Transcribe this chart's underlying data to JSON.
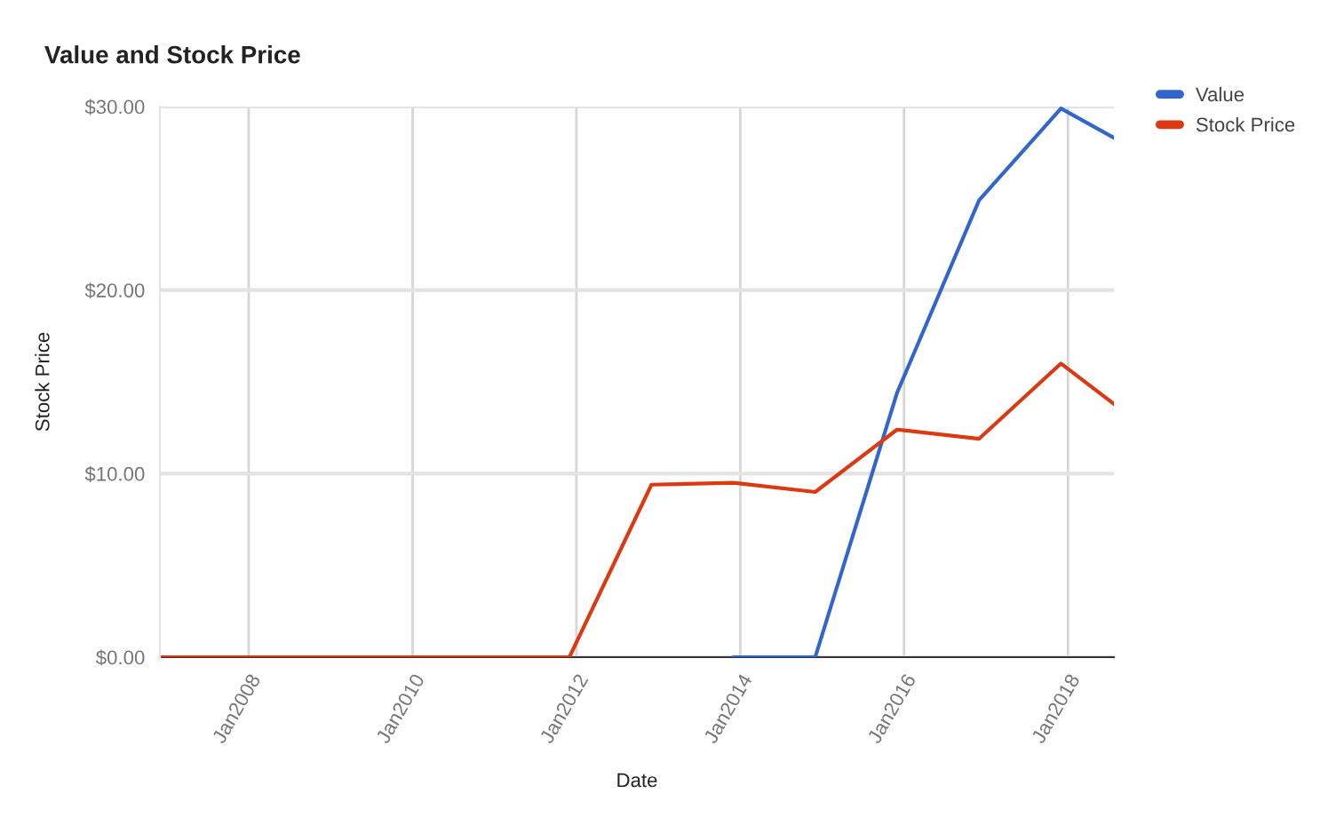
{
  "chart_data": {
    "type": "line",
    "title": "Value and Stock Price",
    "xlabel": "Date",
    "ylabel": "Stock Price",
    "x": [
      "2006-12",
      "2007-12",
      "2008-12",
      "2009-12",
      "2010-12",
      "2011-12",
      "2012-12",
      "2013-12",
      "2014-12",
      "2015-12",
      "2016-12",
      "2017-12",
      "2018-07-25"
    ],
    "series": [
      {
        "name": "Value",
        "color": "#3366cc",
        "values": [
          null,
          null,
          null,
          null,
          null,
          null,
          null,
          0,
          0,
          14.4,
          24.9,
          29.9,
          28.3
        ]
      },
      {
        "name": "Stock Price",
        "color": "#dc3912",
        "values": [
          0,
          0,
          0,
          0,
          0,
          0,
          9.4,
          9.5,
          9.0,
          12.4,
          11.9,
          16.0,
          13.8
        ]
      }
    ],
    "xlim": [
      "2006-12",
      "2018-07-25"
    ],
    "xticks": [
      {
        "value": "2008-01",
        "label": "Jan2008"
      },
      {
        "value": "2010-01",
        "label": "Jan2010"
      },
      {
        "value": "2012-01",
        "label": "Jan2012"
      },
      {
        "value": "2014-01",
        "label": "Jan2014"
      },
      {
        "value": "2016-01",
        "label": "Jan2016"
      },
      {
        "value": "2018-01",
        "label": "Jan2018"
      }
    ],
    "ylim": [
      0,
      30
    ],
    "yticks": [
      {
        "value": 0,
        "label": "$0.00"
      },
      {
        "value": 10,
        "label": "$10.00"
      },
      {
        "value": 20,
        "label": "$20.00"
      },
      {
        "value": 30,
        "label": "$30.00"
      }
    ],
    "grid": true,
    "legend": "top right",
    "line_style": "solid"
  }
}
